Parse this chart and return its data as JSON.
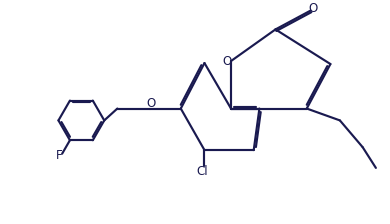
{
  "background": "#ffffff",
  "line_color": "#1a1a50",
  "line_width": 1.55,
  "dbo": 0.048,
  "fs": 8.5,
  "xlim": [
    0,
    10
  ],
  "ylim": [
    0,
    6
  ],
  "figsize": [
    3.9,
    2.24
  ],
  "dpi": 100
}
